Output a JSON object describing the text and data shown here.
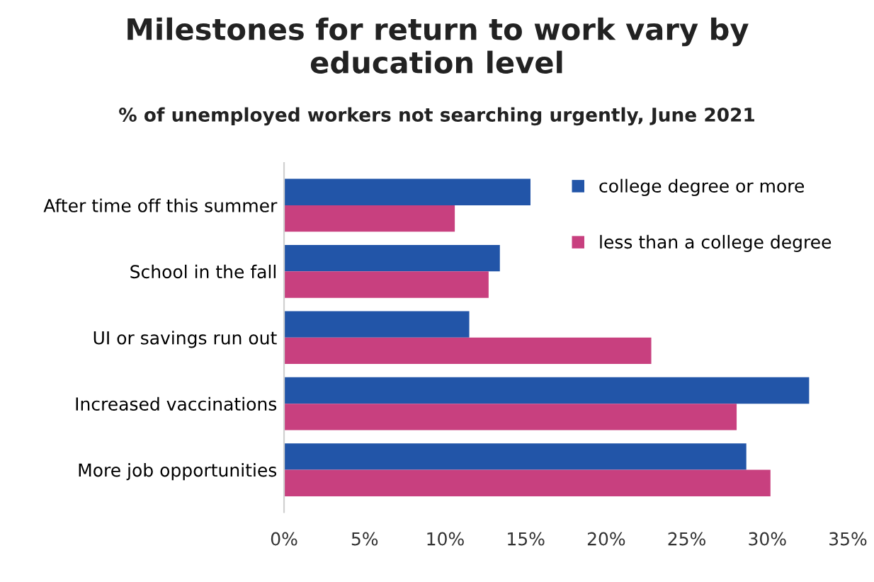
{
  "chart_data": {
    "type": "bar",
    "orientation": "horizontal",
    "title": "Milestones for return to work vary by\neducation level",
    "subtitle": "% of unemployed workers not searching urgently, June 2021",
    "categories": [
      "After time off this summer",
      "School in the fall",
      "UI or savings run out",
      "Increased vaccinations",
      "More job opportunities"
    ],
    "series": [
      {
        "name": "college degree or more",
        "color": "#2255a8",
        "values": [
          15.3,
          13.4,
          11.5,
          32.6,
          28.7
        ]
      },
      {
        "name": "less than a college degree",
        "color": "#c8407f",
        "values": [
          10.6,
          12.7,
          22.8,
          28.1,
          30.2
        ]
      }
    ],
    "xlim": [
      0,
      35
    ],
    "xticks": [
      {
        "value": 0,
        "label": "0%"
      },
      {
        "value": 5,
        "label": "5%"
      },
      {
        "value": 10,
        "label": "10%"
      },
      {
        "value": 15,
        "label": "15%"
      },
      {
        "value": 20,
        "label": "20%"
      },
      {
        "value": 25,
        "label": "25%"
      },
      {
        "value": 30,
        "label": "30%"
      },
      {
        "value": 35,
        "label": "35%"
      }
    ],
    "grid": false,
    "legend": "top right"
  }
}
